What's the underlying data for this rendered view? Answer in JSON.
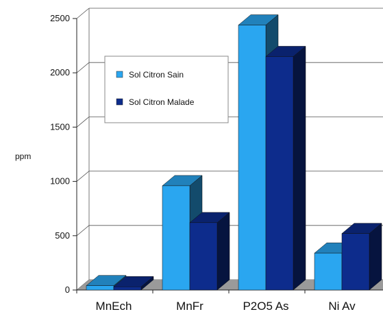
{
  "chart_data": {
    "type": "bar",
    "title": "",
    "xlabel": "",
    "ylabel": "ppm",
    "ylim": [
      0,
      2500
    ],
    "yticks": [
      0,
      500,
      1000,
      1500,
      2000,
      2500
    ],
    "categories": [
      "MnEch",
      "MnFr",
      "P2O5 As",
      "Ni Av"
    ],
    "series": [
      {
        "name": "Sol Citron Sain",
        "color": "#2aa6f0",
        "values": [
          40,
          960,
          2440,
          340
        ]
      },
      {
        "name": "Sol Citron Malade",
        "color": "#0d2c8c",
        "values": [
          30,
          620,
          2150,
          520
        ]
      }
    ],
    "grid": true,
    "legend": "top-left",
    "style": "3d"
  }
}
